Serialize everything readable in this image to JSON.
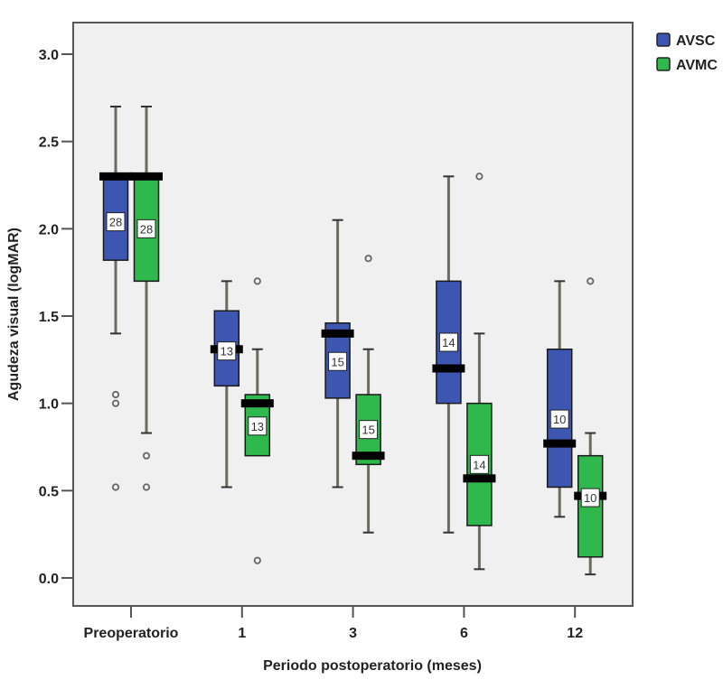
{
  "chart_data": {
    "type": "boxplot",
    "title": "",
    "xlabel": "Periodo postoperatorio (meses)",
    "ylabel": "Agudeza visual (logMAR)",
    "ylim": [
      -0.15,
      3.15
    ],
    "yticks": [
      0.0,
      0.5,
      1.0,
      1.5,
      2.0,
      2.5,
      3.0
    ],
    "ytick_labels": [
      "0.0",
      "0.5",
      "1.0",
      "1.5",
      "2.0",
      "2.5",
      "3.0"
    ],
    "categories": [
      "Preoperatorio",
      "1",
      "3",
      "6",
      "12"
    ],
    "grid": false,
    "legend_position": "top-right-outside",
    "series": [
      {
        "name": "AVSC",
        "color": "#3c56b2",
        "boxes": [
          {
            "whisker_low": 1.4,
            "q1": 1.82,
            "median": 2.3,
            "q3": 2.3,
            "whisker_high": 2.7,
            "outliers": [
              1.05,
              1.0,
              0.52
            ],
            "n": "28"
          },
          {
            "whisker_low": 0.52,
            "q1": 1.1,
            "median": 1.31,
            "q3": 1.53,
            "whisker_high": 1.7,
            "outliers": [],
            "n": "13"
          },
          {
            "whisker_low": 0.52,
            "q1": 1.03,
            "median": 1.4,
            "q3": 1.46,
            "whisker_high": 2.05,
            "outliers": [],
            "n": "15"
          },
          {
            "whisker_low": 0.26,
            "q1": 1.0,
            "median": 1.2,
            "q3": 1.7,
            "whisker_high": 2.3,
            "outliers": [],
            "n": "14"
          },
          {
            "whisker_low": 0.35,
            "q1": 0.52,
            "median": 0.77,
            "q3": 1.31,
            "whisker_high": 1.7,
            "outliers": [],
            "n": "10"
          }
        ]
      },
      {
        "name": "AVMC",
        "color": "#2fb84b",
        "boxes": [
          {
            "whisker_low": 0.83,
            "q1": 1.7,
            "median": 2.3,
            "q3": 2.3,
            "whisker_high": 2.7,
            "outliers": [
              0.7,
              0.52
            ],
            "n": "28"
          },
          {
            "whisker_low": 0.7,
            "q1": 0.7,
            "median": 1.0,
            "q3": 1.05,
            "whisker_high": 1.31,
            "outliers": [
              1.7,
              0.1
            ],
            "n": "13"
          },
          {
            "whisker_low": 0.26,
            "q1": 0.65,
            "median": 0.7,
            "q3": 1.05,
            "whisker_high": 1.31,
            "outliers": [
              1.83
            ],
            "n": "15"
          },
          {
            "whisker_low": 0.05,
            "q1": 0.3,
            "median": 0.57,
            "q3": 1.0,
            "whisker_high": 1.4,
            "outliers": [
              2.3
            ],
            "n": "14"
          },
          {
            "whisker_low": 0.02,
            "q1": 0.12,
            "median": 0.47,
            "q3": 0.7,
            "whisker_high": 0.83,
            "outliers": [
              1.7
            ],
            "n": "10"
          }
        ]
      }
    ],
    "n_label_positions": {
      "AVSC": [
        2.04,
        1.3,
        1.24,
        1.35,
        0.91
      ],
      "AVMC": [
        2.0,
        0.87,
        0.85,
        0.65,
        0.46
      ]
    }
  },
  "legend": {
    "items": [
      {
        "label": "AVSC",
        "color": "#3c56b2"
      },
      {
        "label": "AVMC",
        "color": "#2fb84b"
      }
    ]
  }
}
